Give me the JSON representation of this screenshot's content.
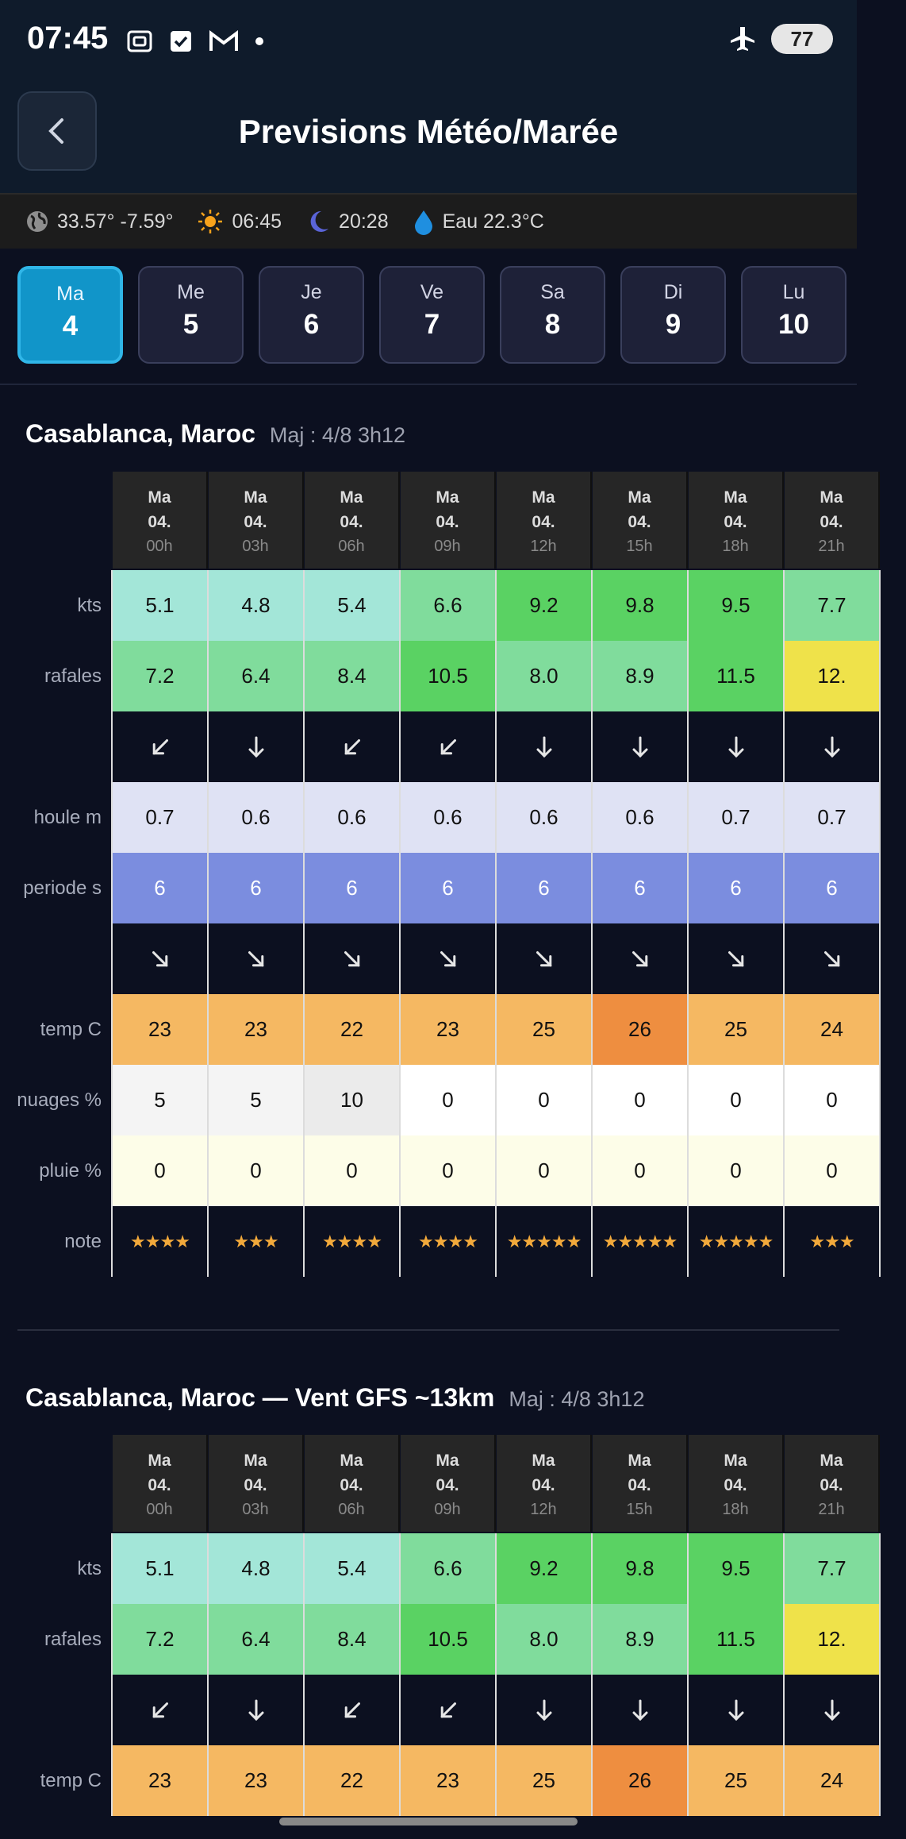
{
  "status": {
    "time": "07:45",
    "battery": "77"
  },
  "appbar": {
    "title": "Previsions Météo/Marée"
  },
  "info": {
    "coords": "33.57° -7.59°",
    "sunrise": "06:45",
    "sunset": "20:28",
    "water": "Eau 22.3°C"
  },
  "days": [
    {
      "name": "Ma",
      "num": "4",
      "active": true
    },
    {
      "name": "Me",
      "num": "5"
    },
    {
      "name": "Je",
      "num": "6"
    },
    {
      "name": "Ve",
      "num": "7"
    },
    {
      "name": "Sa",
      "num": "8"
    },
    {
      "name": "Di",
      "num": "9"
    },
    {
      "name": "Lu",
      "num": "10"
    }
  ],
  "colors": {
    "accent": "#1195c9"
  },
  "section1": {
    "location": "Casablanca, Maroc",
    "maj": "Maj : 4/8 3h12",
    "headers": [
      {
        "day": "Ma",
        "date": "04.",
        "hour": "00h"
      },
      {
        "day": "Ma",
        "date": "04.",
        "hour": "03h"
      },
      {
        "day": "Ma",
        "date": "04.",
        "hour": "06h"
      },
      {
        "day": "Ma",
        "date": "04.",
        "hour": "09h"
      },
      {
        "day": "Ma",
        "date": "04.",
        "hour": "12h"
      },
      {
        "day": "Ma",
        "date": "04.",
        "hour": "15h"
      },
      {
        "day": "Ma",
        "date": "04.",
        "hour": "18h"
      },
      {
        "day": "Ma",
        "date": "04.",
        "hour": "21h"
      }
    ],
    "labels": {
      "kts": "kts",
      "rafales": "rafales",
      "houle": "houle m",
      "periode": "periode s",
      "temp": "temp C",
      "nuages": "nuages %",
      "pluie": "pluie %",
      "note": "note"
    },
    "kts": [
      "5.1",
      "4.8",
      "5.4",
      "6.6",
      "9.2",
      "9.8",
      "9.5",
      "7.7"
    ],
    "kts_colors": [
      "#a3e6d8",
      "#a3e6d8",
      "#a3e6d8",
      "#80dc9c",
      "#5ad263",
      "#5ad263",
      "#5ad263",
      "#80dc9c"
    ],
    "rafales": [
      "7.2",
      "6.4",
      "8.4",
      "10.5",
      "8.0",
      "8.9",
      "11.5",
      "12."
    ],
    "rafales_colors": [
      "#80dc9c",
      "#80dc9c",
      "#80dc9c",
      "#5ad263",
      "#80dc9c",
      "#80dc9c",
      "#5ad263",
      "#efe24a"
    ],
    "wind_dir": [
      "sw",
      "s",
      "sw",
      "sw",
      "s",
      "s",
      "s",
      "s"
    ],
    "houle": [
      "0.7",
      "0.6",
      "0.6",
      "0.6",
      "0.6",
      "0.6",
      "0.7",
      "0.7"
    ],
    "periode": [
      "6",
      "6",
      "6",
      "6",
      "6",
      "6",
      "6",
      "6"
    ],
    "swell_dir": [
      "se",
      "se",
      "se",
      "se",
      "se",
      "se",
      "se",
      "se"
    ],
    "temp": [
      "23",
      "23",
      "22",
      "23",
      "25",
      "26",
      "25",
      "24"
    ],
    "temp_colors": [
      "#f5b862",
      "#f5b862",
      "#f5b862",
      "#f5b862",
      "#f5b862",
      "#ee8e40",
      "#f5b862",
      "#f5b862"
    ],
    "nuages": [
      "5",
      "5",
      "10",
      "0",
      "0",
      "0",
      "0",
      "0"
    ],
    "nuages_colors": [
      "#f4f4f4",
      "#f4f4f4",
      "#ebebeb",
      "#ffffff",
      "#ffffff",
      "#ffffff",
      "#ffffff",
      "#ffffff"
    ],
    "pluie": [
      "0",
      "0",
      "0",
      "0",
      "0",
      "0",
      "0",
      "0"
    ],
    "note": [
      4,
      3,
      4,
      4,
      5,
      5,
      5,
      3
    ]
  },
  "section2": {
    "location": "Casablanca, Maroc — Vent GFS ~13km",
    "maj": "Maj : 4/8 3h12",
    "headers": [
      {
        "day": "Ma",
        "date": "04.",
        "hour": "00h"
      },
      {
        "day": "Ma",
        "date": "04.",
        "hour": "03h"
      },
      {
        "day": "Ma",
        "date": "04.",
        "hour": "06h"
      },
      {
        "day": "Ma",
        "date": "04.",
        "hour": "09h"
      },
      {
        "day": "Ma",
        "date": "04.",
        "hour": "12h"
      },
      {
        "day": "Ma",
        "date": "04.",
        "hour": "15h"
      },
      {
        "day": "Ma",
        "date": "04.",
        "hour": "18h"
      },
      {
        "day": "Ma",
        "date": "04.",
        "hour": "21h"
      }
    ],
    "labels": {
      "kts": "kts",
      "rafales": "rafales",
      "temp": "temp C"
    },
    "kts": [
      "5.1",
      "4.8",
      "5.4",
      "6.6",
      "9.2",
      "9.8",
      "9.5",
      "7.7"
    ],
    "kts_colors": [
      "#a3e6d8",
      "#a3e6d8",
      "#a3e6d8",
      "#80dc9c",
      "#5ad263",
      "#5ad263",
      "#5ad263",
      "#80dc9c"
    ],
    "rafales": [
      "7.2",
      "6.4",
      "8.4",
      "10.5",
      "8.0",
      "8.9",
      "11.5",
      "12."
    ],
    "rafales_colors": [
      "#80dc9c",
      "#80dc9c",
      "#80dc9c",
      "#5ad263",
      "#80dc9c",
      "#80dc9c",
      "#5ad263",
      "#efe24a"
    ],
    "wind_dir": [
      "sw",
      "s",
      "sw",
      "sw",
      "s",
      "s",
      "s",
      "s"
    ],
    "temp": [
      "23",
      "23",
      "22",
      "23",
      "25",
      "26",
      "25",
      "24"
    ],
    "temp_colors": [
      "#f5b862",
      "#f5b862",
      "#f5b862",
      "#f5b862",
      "#f5b862",
      "#ee8e40",
      "#f5b862",
      "#f5b862"
    ]
  }
}
